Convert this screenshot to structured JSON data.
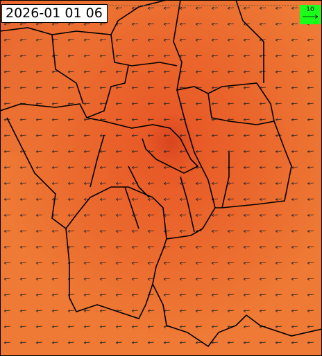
{
  "timestamp": "2026-01 01 06",
  "legend": {
    "label": "10"
  }
}
